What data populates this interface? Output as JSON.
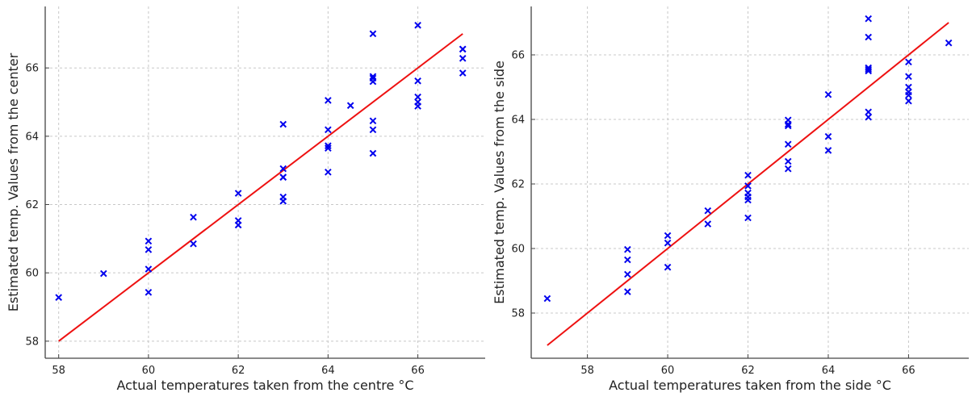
{
  "chart_data": [
    {
      "type": "scatter",
      "xlabel": "Actual temperatures taken from the centre °C",
      "ylabel": "Estimated temp. Values from the center",
      "xlim": [
        57.7,
        67.5
      ],
      "ylim": [
        57.5,
        67.8
      ],
      "xticks": [
        58,
        60,
        62,
        64,
        66
      ],
      "yticks": [
        58,
        60,
        62,
        64,
        66
      ],
      "grid": true,
      "marker": "x",
      "marker_color": "#0000ee",
      "line_color": "#ee1111",
      "fit_line": {
        "x": [
          58,
          67
        ],
        "y": [
          58,
          67
        ]
      },
      "points": {
        "x": [
          58,
          59,
          60,
          60,
          60,
          60,
          61,
          61,
          62,
          62,
          62,
          63,
          63,
          63,
          63,
          63,
          63,
          64,
          64,
          64,
          64,
          64,
          64.5,
          65,
          65,
          65,
          65,
          65,
          65,
          65,
          66,
          66,
          66,
          66,
          66,
          67,
          67,
          67,
          67
        ],
        "y": [
          59.28,
          59.98,
          60.93,
          60.68,
          60.11,
          59.43,
          61.63,
          60.85,
          62.33,
          61.53,
          61.4,
          64.35,
          63.05,
          62.8,
          62.22,
          62.1,
          62.8,
          65.05,
          64.19,
          63.72,
          63.65,
          62.95,
          64.9,
          67.0,
          65.75,
          65.6,
          64.45,
          64.19,
          63.5,
          65.7,
          67.25,
          65.62,
          65.15,
          65.0,
          64.88,
          66.55,
          66.28,
          65.85,
          66.55
        ]
      }
    },
    {
      "type": "scatter",
      "xlabel": "Actual temperatures taken from the side °C",
      "ylabel": "Estimated temp. Values from the side",
      "xlim": [
        56.6,
        67.5
      ],
      "ylim": [
        56.6,
        67.5
      ],
      "xticks": [
        58,
        60,
        62,
        64,
        66
      ],
      "yticks": [
        58,
        60,
        62,
        64,
        66
      ],
      "grid": true,
      "marker": "x",
      "marker_color": "#0000ee",
      "line_color": "#ee1111",
      "fit_line": {
        "x": [
          57,
          67
        ],
        "y": [
          57,
          67
        ]
      },
      "points": {
        "x": [
          57,
          59,
          59,
          59,
          59,
          60,
          60,
          60,
          61,
          61,
          62,
          62,
          62,
          62,
          62,
          62,
          63,
          63,
          63,
          63,
          63,
          63,
          64,
          64,
          64,
          65,
          65,
          65,
          65,
          65,
          65,
          65,
          66,
          66,
          66,
          66,
          66,
          66,
          67
        ],
        "y": [
          58.45,
          59.97,
          59.65,
          59.2,
          58.66,
          60.4,
          60.17,
          59.42,
          61.17,
          60.76,
          62.27,
          61.94,
          61.72,
          61.6,
          61.5,
          60.95,
          63.98,
          63.8,
          63.23,
          62.7,
          62.47,
          63.85,
          64.77,
          63.47,
          63.04,
          67.12,
          66.55,
          65.6,
          65.55,
          65.5,
          64.23,
          64.07,
          65.78,
          65.33,
          65.0,
          64.85,
          64.57,
          64.75,
          66.37
        ]
      }
    }
  ]
}
